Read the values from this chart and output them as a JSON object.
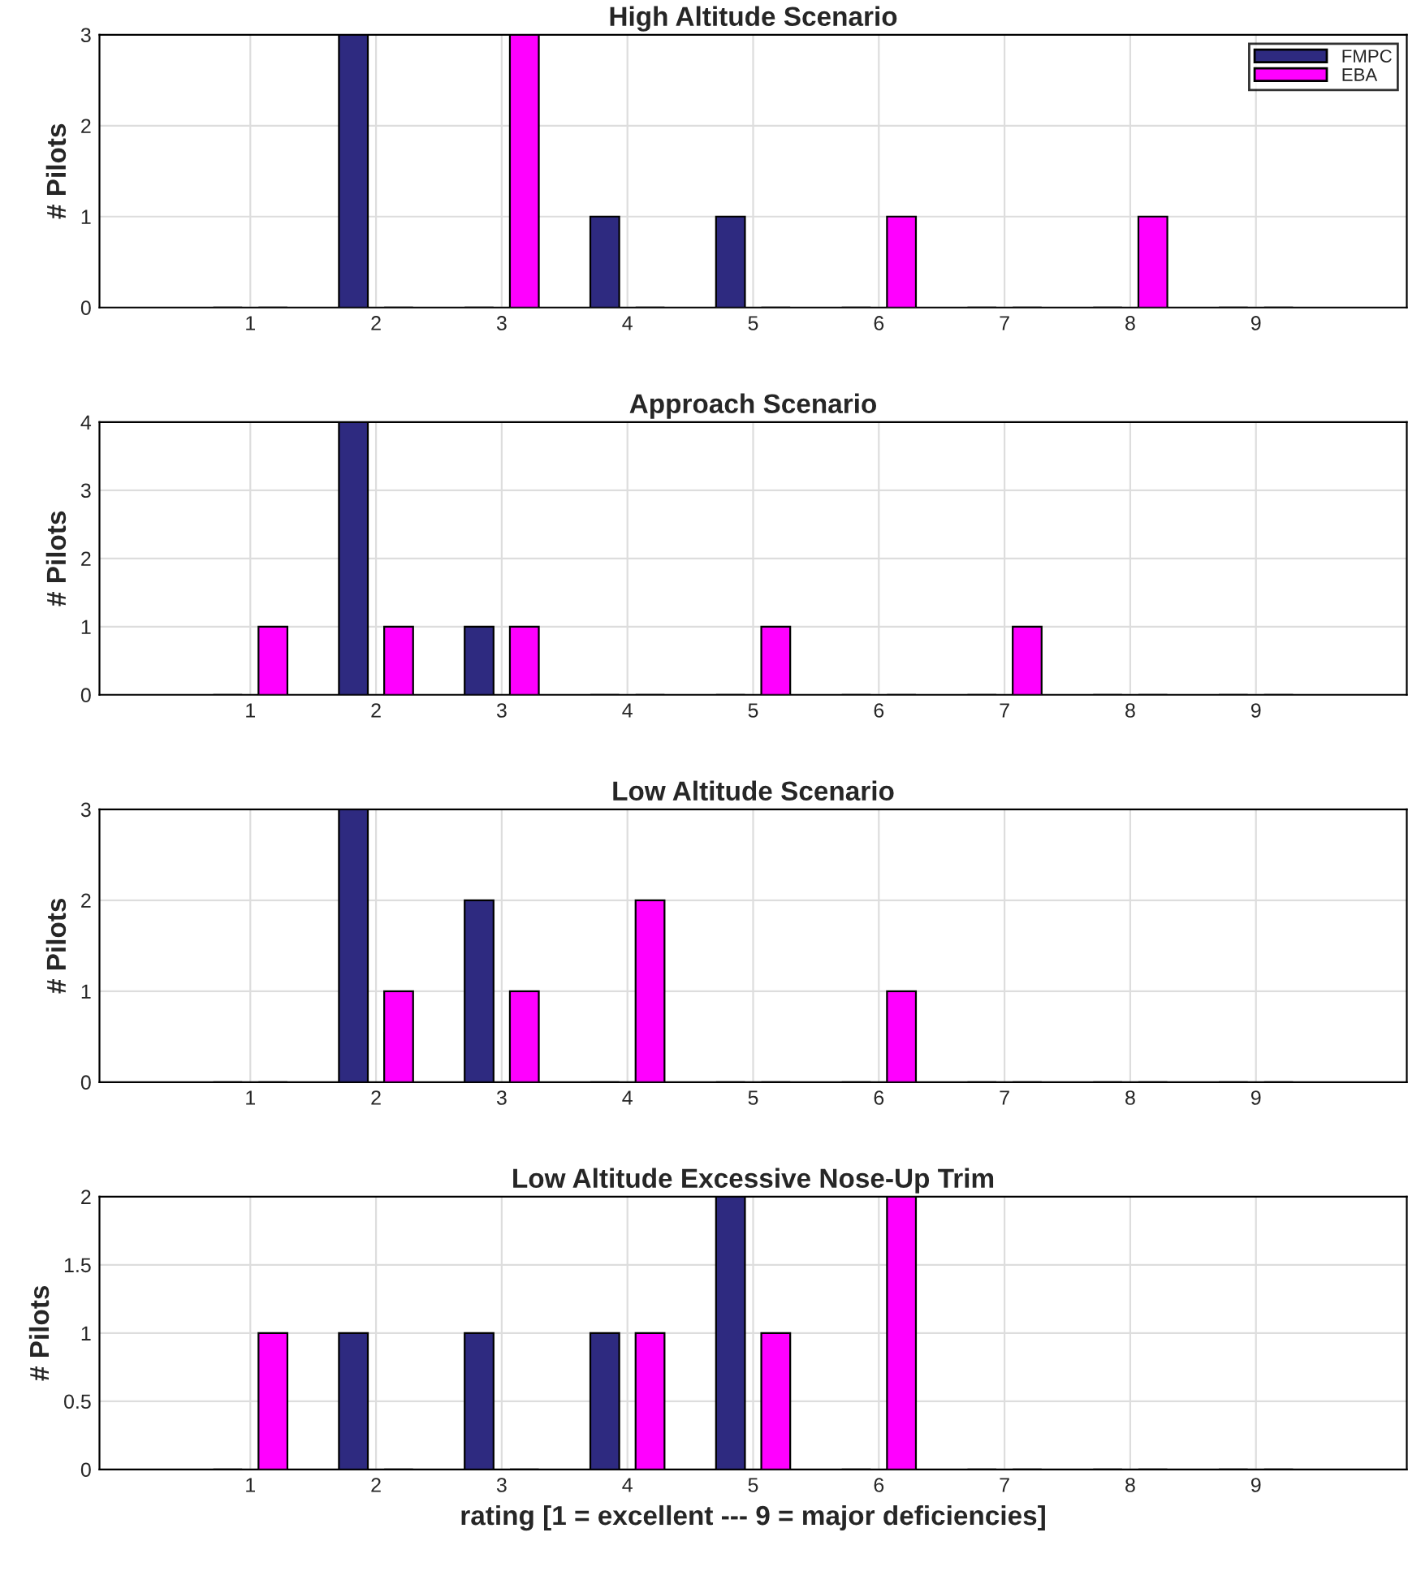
{
  "chart_data": [
    {
      "type": "bar",
      "title": "High Altitude Scenario",
      "ylabel": "# Pilots",
      "x": [
        1,
        2,
        3,
        4,
        5,
        6,
        7,
        8,
        9
      ],
      "xlim": [
        -0.2,
        10.2
      ],
      "xticks": [
        1,
        2,
        3,
        4,
        5,
        6,
        7,
        8,
        9
      ],
      "ylim": [
        0,
        3
      ],
      "yticks": [
        0,
        1,
        2,
        3
      ],
      "grid": true,
      "legend": "top right",
      "series": [
        {
          "name": "FMPC",
          "color": "#2e2a80",
          "values": [
            0,
            3,
            0,
            1,
            1,
            0,
            0,
            0,
            0
          ]
        },
        {
          "name": "EBA",
          "color": "#ff00ff",
          "values": [
            0,
            0,
            3,
            0,
            0,
            1,
            0,
            1,
            0
          ]
        }
      ]
    },
    {
      "type": "bar",
      "title": "Approach Scenario",
      "ylabel": "# Pilots",
      "x": [
        1,
        2,
        3,
        4,
        5,
        6,
        7,
        8,
        9
      ],
      "xlim": [
        -0.2,
        10.2
      ],
      "xticks": [
        1,
        2,
        3,
        4,
        5,
        6,
        7,
        8,
        9
      ],
      "ylim": [
        0,
        4
      ],
      "yticks": [
        0,
        1,
        2,
        3,
        4
      ],
      "grid": true,
      "series": [
        {
          "color": "#2e2a80",
          "values": [
            0,
            4,
            1,
            0,
            0,
            0,
            0,
            0,
            0
          ]
        },
        {
          "color": "#ff00ff",
          "values": [
            1,
            1,
            1,
            0,
            1,
            0,
            1,
            0,
            0
          ]
        }
      ]
    },
    {
      "type": "bar",
      "title": "Low Altitude Scenario",
      "ylabel": "# Pilots",
      "x": [
        1,
        2,
        3,
        4,
        5,
        6,
        7,
        8,
        9
      ],
      "xlim": [
        -0.2,
        10.2
      ],
      "xticks": [
        1,
        2,
        3,
        4,
        5,
        6,
        7,
        8,
        9
      ],
      "ylim": [
        0,
        3
      ],
      "yticks": [
        0,
        1,
        2,
        3
      ],
      "grid": true,
      "series": [
        {
          "color": "#2e2a80",
          "values": [
            0,
            3,
            2,
            0,
            0,
            0,
            0,
            0,
            0
          ]
        },
        {
          "color": "#ff00ff",
          "values": [
            0,
            1,
            1,
            2,
            0,
            1,
            0,
            0,
            0
          ]
        }
      ]
    },
    {
      "type": "bar",
      "title": "Low Altitude Excessive Nose-Up Trim",
      "ylabel": "# Pilots",
      "xlabel": "rating [1 = excellent --- 9 = major deficiencies]",
      "x": [
        1,
        2,
        3,
        4,
        5,
        6,
        7,
        8,
        9
      ],
      "xlim": [
        -0.2,
        10.2
      ],
      "xticks": [
        1,
        2,
        3,
        4,
        5,
        6,
        7,
        8,
        9
      ],
      "ylim": [
        0,
        2
      ],
      "yticks": [
        0,
        0.5,
        1,
        1.5,
        2
      ],
      "grid": true,
      "series": [
        {
          "color": "#2e2a80",
          "values": [
            0,
            1,
            1,
            1,
            2,
            0,
            0,
            0,
            0
          ]
        },
        {
          "color": "#ff00ff",
          "values": [
            1,
            0,
            0,
            1,
            1,
            2,
            0,
            0,
            0
          ]
        }
      ]
    }
  ]
}
